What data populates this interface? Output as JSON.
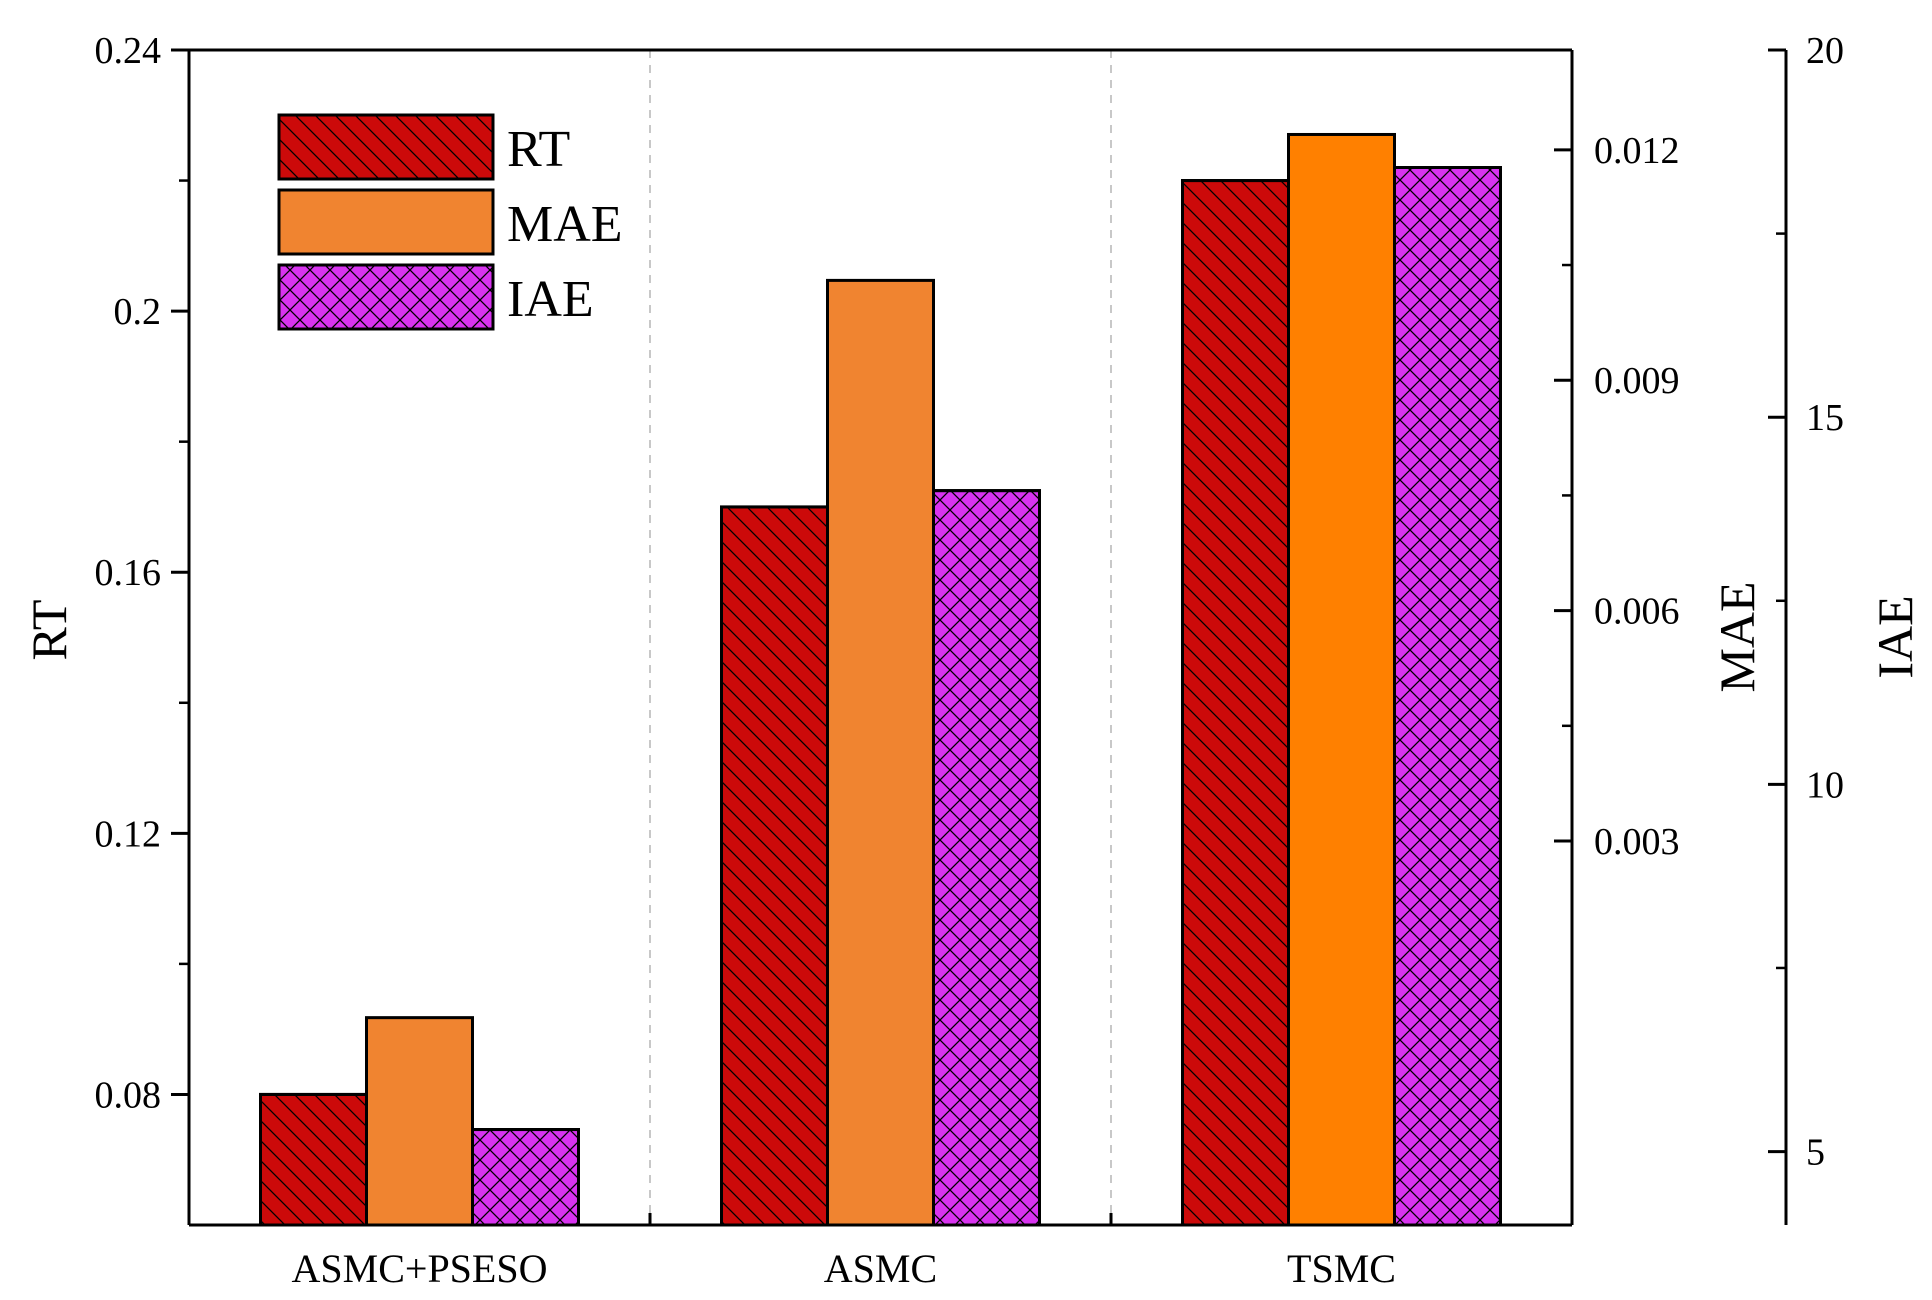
{
  "chart_data": {
    "type": "bar",
    "categories": [
      "ASMC+PSESO",
      "ASMC",
      "TSMC"
    ],
    "series": [
      {
        "name": "RT",
        "axis": "RT",
        "values": [
          0.08,
          0.17,
          0.22
        ],
        "color": "#cc0a0a",
        "pattern": "diagonal-hatch"
      },
      {
        "name": "MAE",
        "axis": "MAE",
        "values": [
          0.0007,
          0.0103,
          0.0122
        ],
        "colors": [
          "#f08430",
          "#f08430",
          "#ff8000"
        ],
        "pattern": "solid"
      },
      {
        "name": "IAE",
        "axis": "IAE",
        "values": [
          5.3,
          14.0,
          18.4
        ],
        "color": "#d833f0",
        "pattern": "crosshatch"
      }
    ],
    "axes": {
      "RT": {
        "title": "RT",
        "side": "left",
        "ylim": [
          0.06,
          0.24
        ],
        "ticks": [
          0.08,
          0.12,
          0.16,
          0.2,
          0.24
        ],
        "tick_labels": [
          "0.08",
          "0.12",
          "0.16",
          "0.2",
          "0.24"
        ]
      },
      "MAE": {
        "title": "MAE",
        "side": "right",
        "ylim": [
          -0.002,
          0.0133
        ],
        "ticks": [
          0.003,
          0.006,
          0.009,
          0.012
        ],
        "tick_labels": [
          "0.003",
          "0.006",
          "0.009",
          "0.012"
        ]
      },
      "IAE": {
        "title": "IAE",
        "side": "right-offset",
        "ylim": [
          4,
          20
        ],
        "ticks": [
          5,
          10,
          15,
          20
        ],
        "tick_labels": [
          "5",
          "10",
          "15",
          "20"
        ]
      }
    },
    "grid": "vertical dashed separators between categories",
    "legend_position": "top-left"
  }
}
